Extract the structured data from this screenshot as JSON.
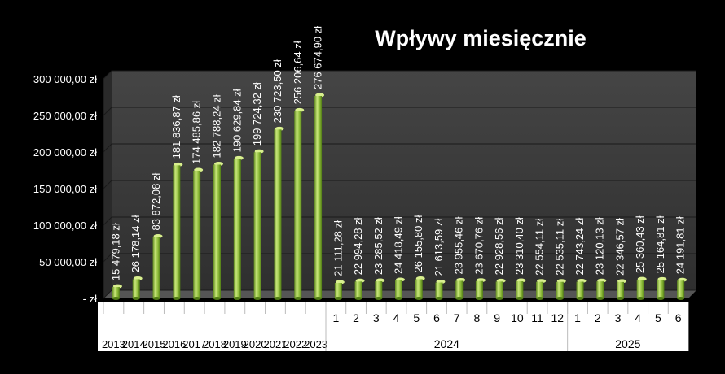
{
  "chart_data": {
    "type": "bar",
    "title": "Wpływy miesięcznie",
    "ylim": [
      0,
      300000
    ],
    "yticks": [
      0,
      50000,
      100000,
      150000,
      200000,
      250000,
      300000
    ],
    "ytick_labels": [
      "-  zł",
      "50 000,00 zł",
      "100 000,00 zł",
      "150 000,00 zł",
      "200 000,00 zł",
      "250 000,00 zł",
      "300 000,00 zł"
    ],
    "categories": [
      "2013",
      "2014",
      "2015",
      "2016",
      "2017",
      "2018",
      "2019",
      "2020",
      "2021",
      "2022",
      "2023",
      "1",
      "2",
      "3",
      "4",
      "5",
      "6",
      "7",
      "8",
      "9",
      "10",
      "11",
      "12",
      "1",
      "2",
      "3",
      "4",
      "5",
      "6"
    ],
    "groups": [
      {
        "label": "2024",
        "start": 11,
        "end": 22
      },
      {
        "label": "2025",
        "start": 23,
        "end": 28
      }
    ],
    "values": [
      15479.18,
      26178.14,
      83872.08,
      181836.87,
      174485.86,
      182788.24,
      190629.84,
      199724.32,
      230723.5,
      256206.64,
      276674.9,
      21111.28,
      22994.28,
      23285.52,
      24418.49,
      26155.8,
      21613.59,
      23955.46,
      23670.76,
      22928.56,
      23310.4,
      22554.11,
      22535.11,
      22743.24,
      23120.13,
      22346.57,
      25360.43,
      25164.81,
      24191.81
    ],
    "data_labels": [
      "15 479,18 zł",
      "26 178,14 zł",
      "83 872,08 zł",
      "181 836,87 zł",
      "174 485,86 zł",
      "182 788,24 zł",
      "190 629,84 zł",
      "199 724,32 zł",
      "230 723,50 zł",
      "256 206,64 zł",
      "276 674,90 zł",
      "21 111,28 zł",
      "22 994,28 zł",
      "23 285,52 zł",
      "24 418,49 zł",
      "26 155,80 zł",
      "21 613,59 zł",
      "23 955,46 zł",
      "23 670,76 zł",
      "22 928,56 zł",
      "23 310,40 zł",
      "22 554,11 zł",
      "22 535,11 zł",
      "22 743,24 zł",
      "23 120,13 zł",
      "22 346,57 zł",
      "25 360,43 zł",
      "25 164,81 zł",
      "24 191,81 zł"
    ],
    "grid": true,
    "legend": "none",
    "colors": {
      "background": "#000000",
      "plot_wall": "#3d3d3d",
      "plot_floor": "#555555",
      "bar_light": "#c8e67a",
      "bar_mid": "#8dbb3a",
      "bar_dark": "#4f7a14",
      "gridline": "#1a1a1a",
      "text": "#ffffff",
      "cat_text": "#000000",
      "table_bg": "#ffffff"
    }
  }
}
